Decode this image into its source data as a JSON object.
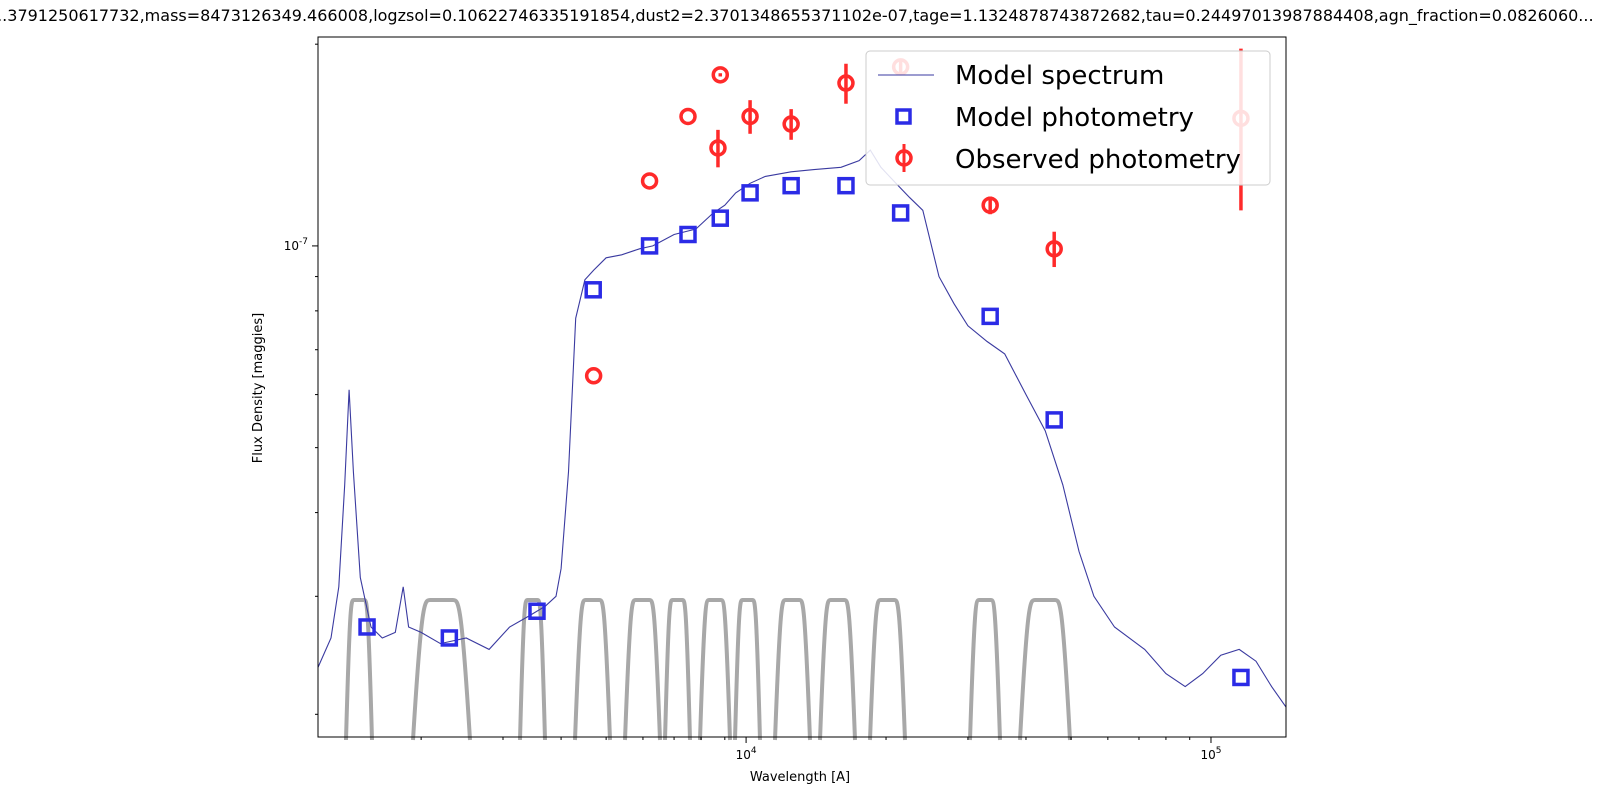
{
  "title": "...3791250617732,mass=8473126349.466008,logzsol=0.10622746335191854,dust2=2.3701348655371102e-07,tage=1.1324878743872682,tau=0.24497013987884408,agn_fraction=0.0826060...",
  "colors": {
    "model_spectrum": "#3a3aa0",
    "model_photometry": "#2b2be6",
    "observed_photometry": "#ff2a2a",
    "filters": "#a8a8a8",
    "axes": "#000000"
  },
  "chart_data": {
    "type": "scatter",
    "xlabel": "Wavelength [A]",
    "ylabel": "Flux Density [maggies]",
    "xscale": "log",
    "yscale": "log",
    "xlim": [
      1200,
      145000
    ],
    "ylim": [
      1.85e-08,
      2.05e-07
    ],
    "x_ticks": [
      {
        "value": 10000,
        "label": "10^4"
      },
      {
        "value": 100000,
        "label": "10^5"
      }
    ],
    "y_ticks": [
      {
        "value": 1e-07,
        "label": "10^-7"
      }
    ],
    "legend_position": "top-right",
    "series": [
      {
        "name": "Model spectrum",
        "kind": "line",
        "points": [
          [
            1200,
            2.35e-08
          ],
          [
            1280,
            2.6e-08
          ],
          [
            1330,
            3.1e-08
          ],
          [
            1370,
            4.4e-08
          ],
          [
            1400,
            6.1e-08
          ],
          [
            1430,
            4.6e-08
          ],
          [
            1480,
            3.2e-08
          ],
          [
            1560,
            2.7e-08
          ],
          [
            1650,
            2.6e-08
          ],
          [
            1760,
            2.65e-08
          ],
          [
            1830,
            3.1e-08
          ],
          [
            1880,
            2.7e-08
          ],
          [
            2000,
            2.65e-08
          ],
          [
            2200,
            2.55e-08
          ],
          [
            2500,
            2.6e-08
          ],
          [
            2800,
            2.5e-08
          ],
          [
            3100,
            2.7e-08
          ],
          [
            3400,
            2.8e-08
          ],
          [
            3700,
            2.9e-08
          ],
          [
            3900,
            3e-08
          ],
          [
            4000,
            3.3e-08
          ],
          [
            4150,
            4.6e-08
          ],
          [
            4300,
            7.8e-08
          ],
          [
            4500,
            8.9e-08
          ],
          [
            4700,
            9.2e-08
          ],
          [
            5000,
            9.6e-08
          ],
          [
            5400,
            9.7e-08
          ],
          [
            5900,
            9.9e-08
          ],
          [
            6300,
            1e-07
          ],
          [
            7000,
            1.04e-07
          ],
          [
            7800,
            1.06e-07
          ],
          [
            8500,
            1.12e-07
          ],
          [
            9000,
            1.15e-07
          ],
          [
            9500,
            1.2e-07
          ],
          [
            10200,
            1.24e-07
          ],
          [
            11000,
            1.27e-07
          ],
          [
            12500,
            1.29e-07
          ],
          [
            14000,
            1.3e-07
          ],
          [
            16000,
            1.31e-07
          ],
          [
            17500,
            1.34e-07
          ],
          [
            18500,
            1.39e-07
          ],
          [
            19500,
            1.31e-07
          ],
          [
            21000,
            1.24e-07
          ],
          [
            22500,
            1.18e-07
          ],
          [
            24000,
            1.13e-07
          ],
          [
            26000,
            9e-08
          ],
          [
            28000,
            8.2e-08
          ],
          [
            30000,
            7.6e-08
          ],
          [
            33000,
            7.2e-08
          ],
          [
            36000,
            6.9e-08
          ],
          [
            40000,
            6e-08
          ],
          [
            44000,
            5.3e-08
          ],
          [
            48000,
            4.4e-08
          ],
          [
            52000,
            3.5e-08
          ],
          [
            56000,
            3e-08
          ],
          [
            62000,
            2.7e-08
          ],
          [
            72000,
            2.5e-08
          ],
          [
            80000,
            2.3e-08
          ],
          [
            88000,
            2.2e-08
          ],
          [
            96000,
            2.3e-08
          ],
          [
            105000,
            2.45e-08
          ],
          [
            115000,
            2.5e-08
          ],
          [
            125000,
            2.4e-08
          ],
          [
            135000,
            2.2e-08
          ],
          [
            145000,
            2.05e-08
          ]
        ]
      },
      {
        "name": "Model photometry",
        "kind": "marker-square",
        "points": [
          [
            1530,
            2.7e-08
          ],
          [
            2300,
            2.6e-08
          ],
          [
            3550,
            2.85e-08
          ],
          [
            4690,
            8.6e-08
          ],
          [
            6200,
            1e-07
          ],
          [
            7500,
            1.04e-07
          ],
          [
            8800,
            1.1e-07
          ],
          [
            10200,
            1.2e-07
          ],
          [
            12500,
            1.23e-07
          ],
          [
            16400,
            1.23e-07
          ],
          [
            21500,
            1.12e-07
          ],
          [
            33500,
            7.85e-08
          ],
          [
            46000,
            5.5e-08
          ],
          [
            116000,
            2.27e-08
          ]
        ]
      },
      {
        "name": "Observed photometry",
        "kind": "marker-errorbar",
        "points": [
          {
            "x": 4700,
            "y": 6.4e-08,
            "yerr": 0
          },
          {
            "x": 6200,
            "y": 1.25e-07,
            "yerr": 0
          },
          {
            "x": 7500,
            "y": 1.56e-07,
            "yerr": 0
          },
          {
            "x": 8800,
            "y": 1.8e-07,
            "yerr": 1e-09
          },
          {
            "x": 8700,
            "y": 1.4e-07,
            "yerr": 9e-09
          },
          {
            "x": 10200,
            "y": 1.56e-07,
            "yerr": 9e-09
          },
          {
            "x": 12500,
            "y": 1.52e-07,
            "yerr": 8e-09
          },
          {
            "x": 16400,
            "y": 1.75e-07,
            "yerr": 1.2e-08
          },
          {
            "x": 21500,
            "y": 1.85e-07,
            "yerr": 4e-09
          },
          {
            "x": 33500,
            "y": 1.15e-07,
            "yerr": 3.5e-09
          },
          {
            "x": 46000,
            "y": 9.9e-08,
            "yerr": 6e-09
          },
          {
            "x": 116000,
            "y": 1.55e-07,
            "yerr": 4.2e-08
          }
        ]
      }
    ]
  }
}
